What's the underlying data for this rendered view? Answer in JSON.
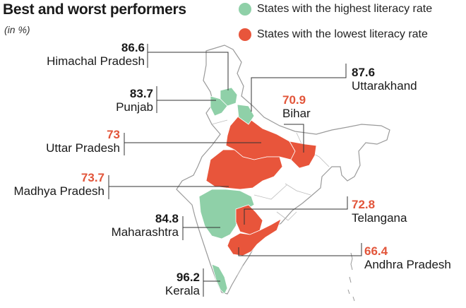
{
  "title": "Best and worst performers",
  "subtitle": "(in %)",
  "legend": {
    "highest": {
      "label": "States with the highest literacy rate",
      "color": "#8fd0a8"
    },
    "lowest": {
      "label": "States with the lowest literacy rate",
      "color": "#e8553b"
    }
  },
  "states": {
    "himachal": {
      "name": "Himachal Pradesh",
      "value": "86.6",
      "group": "highest"
    },
    "uttarakhand": {
      "name": "Uttarakhand",
      "value": "87.6",
      "group": "highest"
    },
    "punjab": {
      "name": "Punjab",
      "value": "83.7",
      "group": "highest"
    },
    "bihar": {
      "name": "Bihar",
      "value": "70.9",
      "group": "lowest"
    },
    "up": {
      "name": "Uttar Pradesh",
      "value": "73",
      "group": "lowest"
    },
    "mp": {
      "name": "Madhya Pradesh",
      "value": "73.7",
      "group": "lowest"
    },
    "telangana": {
      "name": "Telangana",
      "value": "72.8",
      "group": "lowest"
    },
    "maharashtra": {
      "name": "Maharashtra",
      "value": "84.8",
      "group": "highest"
    },
    "andhra": {
      "name": "Andhra Pradesh",
      "value": "66.4",
      "group": "lowest"
    },
    "kerala": {
      "name": "Kerala",
      "value": "96.2",
      "group": "highest"
    }
  },
  "colors": {
    "outline": "#9a9a9a",
    "leader": "#333333",
    "land": "#ffffff"
  }
}
